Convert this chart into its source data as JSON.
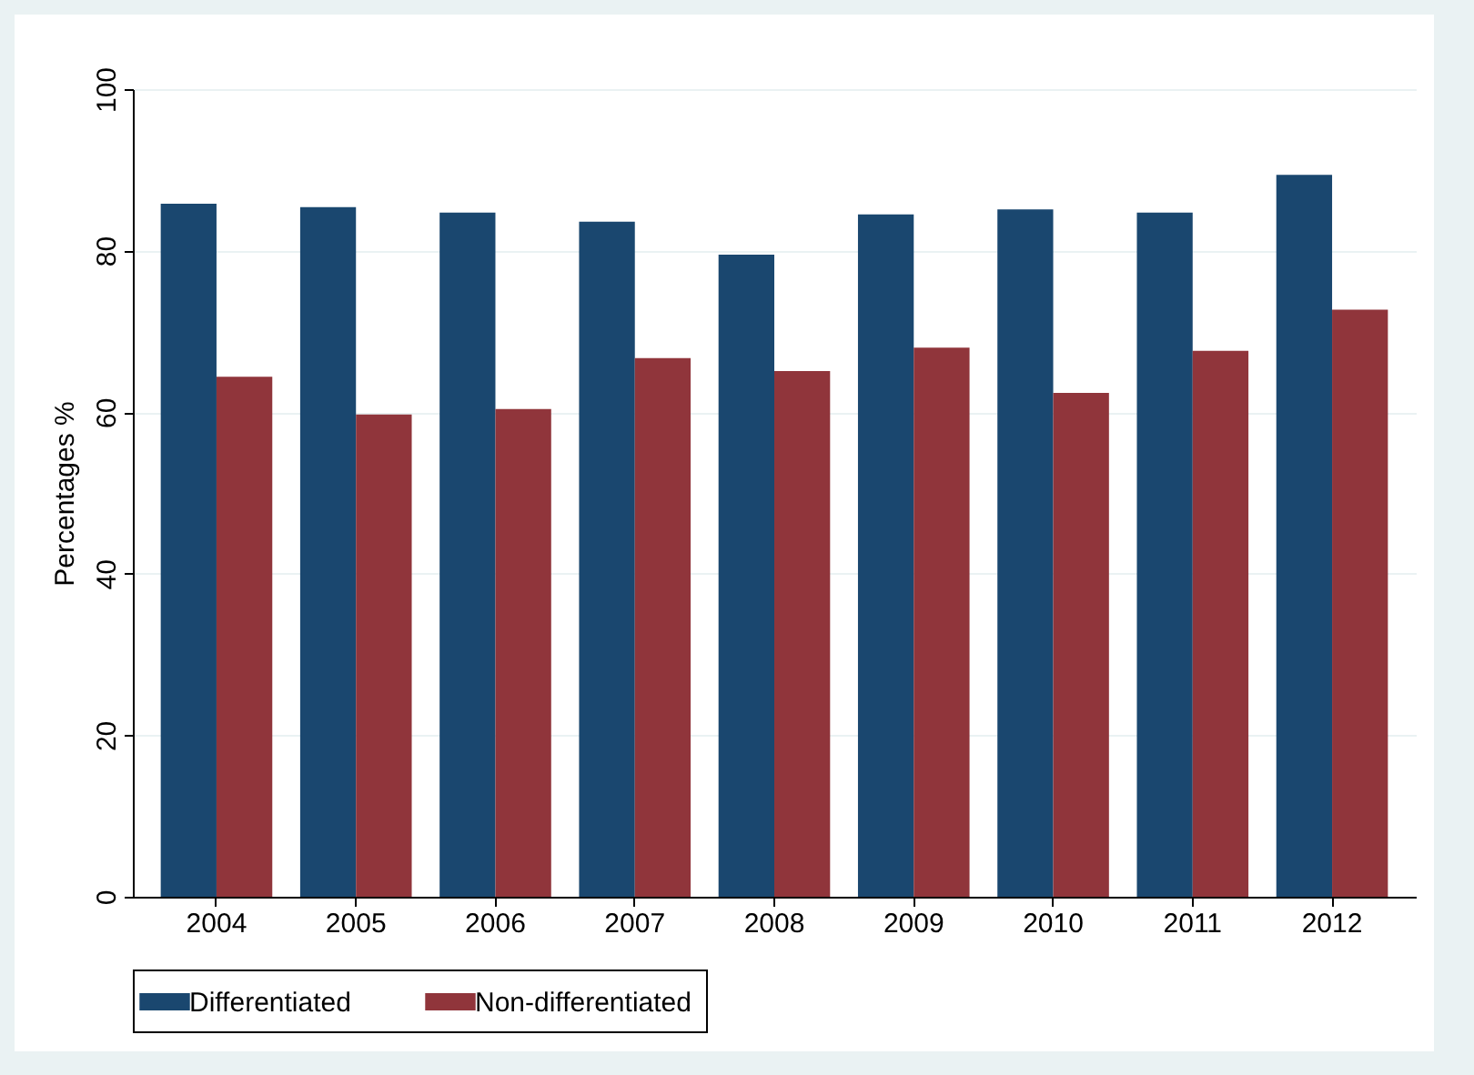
{
  "chart_data": {
    "type": "bar",
    "ylabel": "Percentages %",
    "categories": [
      "2004",
      "2005",
      "2006",
      "2007",
      "2008",
      "2009",
      "2010",
      "2011",
      "2012"
    ],
    "series": [
      {
        "name": "Differentiated",
        "color": "#1a476f",
        "values": [
          85.8,
          85.4,
          84.7,
          83.6,
          79.5,
          84.5,
          85.1,
          84.7,
          89.4
        ]
      },
      {
        "name": "Non-differentiated",
        "color": "#90353b",
        "values": [
          64.4,
          59.7,
          60.4,
          66.7,
          65.1,
          68.0,
          62.4,
          67.6,
          72.7
        ]
      }
    ],
    "ylim": [
      0,
      100
    ],
    "yticks": [
      0,
      20,
      40,
      60,
      80,
      100
    ],
    "grid": "y",
    "legend": "bottom"
  }
}
